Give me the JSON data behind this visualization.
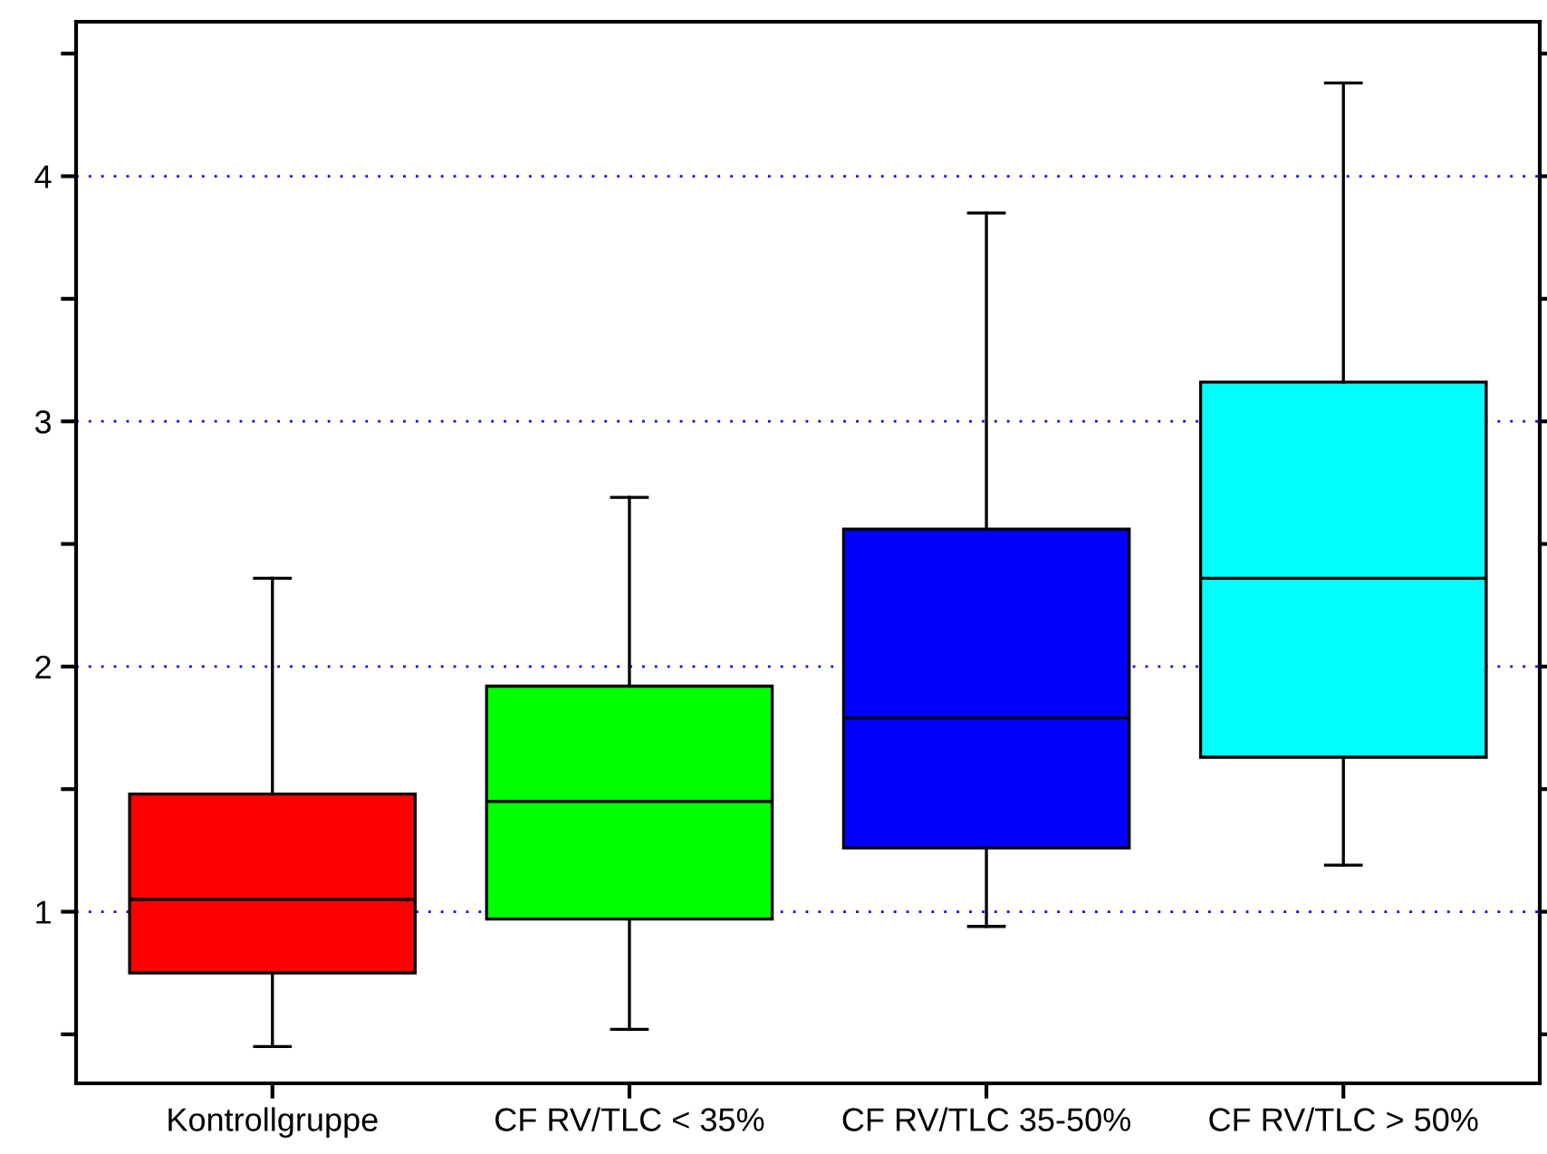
{
  "chart_data": {
    "type": "box",
    "categories": [
      "Kontrollgruppe",
      "CF RV/TLC < 35%",
      "CF RV/TLC 35-50%",
      "CF RV/TLC > 50%"
    ],
    "colors": [
      "#ff0000",
      "#00ff00",
      "#0000ff",
      "#00ffff"
    ],
    "boxes": [
      {
        "low": 0.45,
        "q1": 0.75,
        "median": 1.05,
        "q3": 1.48,
        "high": 2.36
      },
      {
        "low": 0.52,
        "q1": 0.97,
        "median": 1.45,
        "q3": 1.92,
        "high": 2.69
      },
      {
        "low": 0.94,
        "q1": 1.26,
        "median": 1.79,
        "q3": 2.56,
        "high": 3.85
      },
      {
        "low": 1.19,
        "q1": 1.63,
        "median": 2.36,
        "q3": 3.16,
        "high": 4.38
      }
    ],
    "ylim": [
      0.3,
      4.63
    ],
    "yticks": [
      {
        "value": 0.5,
        "label": null
      },
      1,
      {
        "value": 1.5,
        "label": null
      },
      2,
      {
        "value": 2.5,
        "label": null
      },
      3,
      {
        "value": 3.5,
        "label": null
      },
      4,
      {
        "value": 4.5,
        "label": null
      }
    ],
    "grid": "y"
  }
}
